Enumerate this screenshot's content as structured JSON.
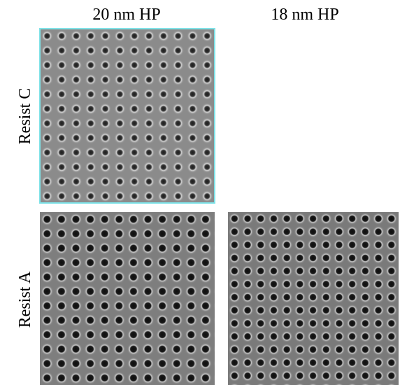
{
  "columns": [
    "20 nm HP",
    "18 nm HP"
  ],
  "rows": [
    "Resist C",
    "Resist A"
  ]
}
